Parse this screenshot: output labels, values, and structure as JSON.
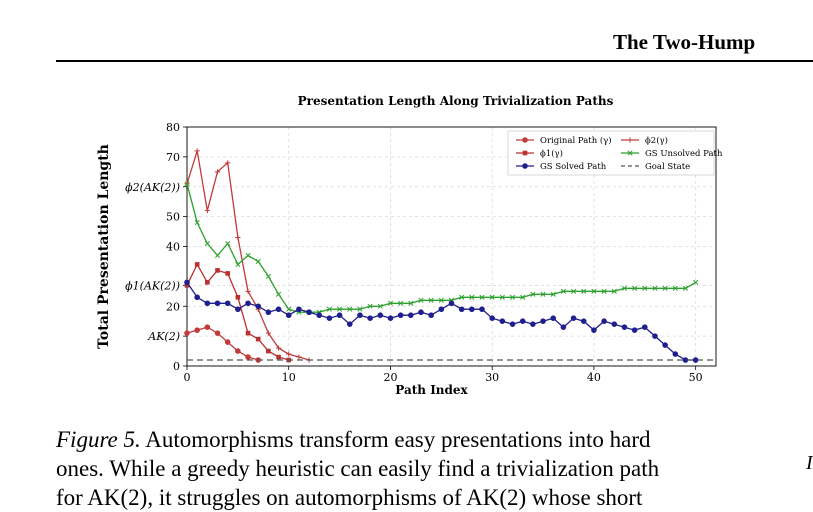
{
  "header": {
    "running_title": "The Two-Hump"
  },
  "chart_data": {
    "type": "line",
    "title": "Presentation Length Along Trivialization Paths",
    "xlabel": "Path Index",
    "ylabel": "Total Presentation Length",
    "xlim": [
      0,
      52
    ],
    "ylim": [
      0,
      80
    ],
    "xticks": [
      0,
      10,
      20,
      30,
      40,
      50
    ],
    "yticks": [
      {
        "v": 0,
        "label": "0"
      },
      {
        "v": 10,
        "label": "AK(2)"
      },
      {
        "v": 20,
        "label": "20"
      },
      {
        "v": 27,
        "label": "ϕ1(AK(2))"
      },
      {
        "v": 40,
        "label": "40"
      },
      {
        "v": 50,
        "label": "50"
      },
      {
        "v": 60,
        "label": "ϕ2(AK(2))"
      },
      {
        "v": 70,
        "label": "70"
      },
      {
        "v": 80,
        "label": "80"
      }
    ],
    "grid": true,
    "legend_position": "top-right",
    "series": [
      {
        "name": "Original Path (γ)",
        "color": "#c23b3b",
        "marker": "circle",
        "x": [
          0,
          1,
          2,
          3,
          4,
          5,
          6,
          7
        ],
        "y": [
          11,
          12,
          13,
          11,
          8,
          5,
          3,
          2
        ]
      },
      {
        "name": "ϕ1(γ)",
        "color": "#b83030",
        "marker": "square",
        "x": [
          0,
          1,
          2,
          3,
          4,
          5,
          6,
          7,
          8,
          9,
          10
        ],
        "y": [
          27,
          34,
          28,
          32,
          31,
          23,
          11,
          9,
          5,
          3,
          2
        ]
      },
      {
        "name": "ϕ2(γ)",
        "color": "#c23b3b",
        "marker": "plus",
        "x": [
          0,
          1,
          2,
          3,
          4,
          5,
          6,
          7,
          8,
          9,
          10,
          11,
          12
        ],
        "y": [
          61,
          72,
          52,
          65,
          68,
          43,
          25,
          19,
          11,
          6,
          4,
          3,
          2
        ]
      },
      {
        "name": "GS Unsolved Path",
        "color": "#2ca02c",
        "marker": "x",
        "x": [
          0,
          1,
          2,
          3,
          4,
          5,
          6,
          7,
          8,
          9,
          10,
          11,
          12,
          13,
          14,
          15,
          16,
          17,
          18,
          19,
          20,
          21,
          22,
          23,
          24,
          25,
          26,
          27,
          28,
          29,
          30,
          31,
          32,
          33,
          34,
          35,
          36,
          37,
          38,
          39,
          40,
          41,
          42,
          43,
          44,
          45,
          46,
          47,
          48,
          49,
          50
        ],
        "y": [
          61,
          48,
          41,
          37,
          41,
          34,
          37,
          35,
          30,
          24,
          19,
          18,
          18,
          18,
          19,
          19,
          19,
          19,
          20,
          20,
          21,
          21,
          21,
          22,
          22,
          22,
          22,
          23,
          23,
          23,
          23,
          23,
          23,
          23,
          24,
          24,
          24,
          25,
          25,
          25,
          25,
          25,
          25,
          26,
          26,
          26,
          26,
          26,
          26,
          26,
          28
        ]
      },
      {
        "name": "GS Solved Path",
        "color": "#1f1f8f",
        "marker": "circle",
        "x": [
          0,
          1,
          2,
          3,
          4,
          5,
          6,
          7,
          8,
          9,
          10,
          11,
          12,
          13,
          14,
          15,
          16,
          17,
          18,
          19,
          20,
          21,
          22,
          23,
          24,
          25,
          26,
          27,
          28,
          29,
          30,
          31,
          32,
          33,
          34,
          35,
          36,
          37,
          38,
          39,
          40,
          41,
          42,
          43,
          44,
          45,
          46,
          47,
          48,
          49,
          50
        ],
        "y": [
          28,
          23,
          21,
          21,
          21,
          19,
          21,
          20,
          18,
          19,
          17,
          19,
          18,
          17,
          16,
          17,
          14,
          17,
          16,
          17,
          16,
          17,
          17,
          18,
          17,
          19,
          21,
          19,
          19,
          19,
          16,
          15,
          14,
          15,
          14,
          15,
          16,
          13,
          16,
          15,
          12,
          15,
          14,
          13,
          12,
          13,
          10,
          7,
          4,
          2,
          2
        ]
      },
      {
        "name": "Goal State",
        "color": "#555555",
        "dashed": true,
        "y_const": 2
      }
    ],
    "legend": [
      {
        "name": "Original Path (γ)",
        "color": "#c23b3b",
        "marker": "circle"
      },
      {
        "name": "ϕ2(γ)",
        "color": "#c23b3b",
        "marker": "plus"
      },
      {
        "name": "ϕ1(γ)",
        "color": "#b83030",
        "marker": "square"
      },
      {
        "name": "GS Unsolved Path",
        "color": "#2ca02c",
        "marker": "x"
      },
      {
        "name": "GS Solved Path",
        "color": "#1f1f8f",
        "marker": "circle"
      },
      {
        "name": "Goal State",
        "color": "#555555",
        "dashed": true
      }
    ]
  },
  "caption": {
    "label": "Figure 5.",
    "line1": " Automorphisms transform easy presentations into hard",
    "line2": "ones. While a greedy heuristic can easily find a trivialization path",
    "line3": "for AK(2), it struggles on automorphisms of AK(2) whose short"
  },
  "side_mark": "I"
}
